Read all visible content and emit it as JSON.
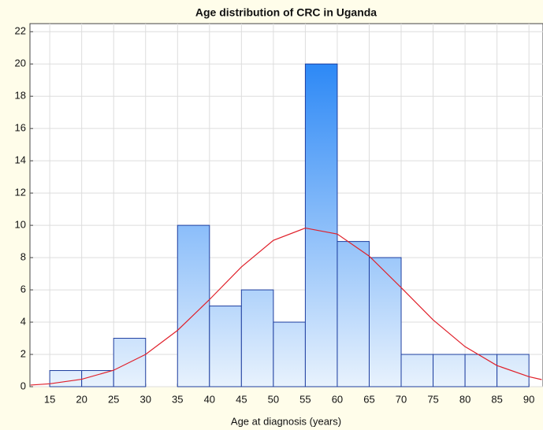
{
  "chart_data": {
    "type": "histogram",
    "title": "Age distribution of CRC in Uganda",
    "x_label": "Age at diagnosis (years)",
    "bins": [
      15,
      20,
      25,
      30,
      35,
      40,
      45,
      50,
      55,
      60,
      65,
      70,
      75,
      80,
      85,
      90
    ],
    "values": [
      1,
      1,
      3,
      0,
      10,
      5,
      6,
      4,
      20,
      9,
      8,
      2,
      2,
      2,
      2
    ],
    "gradient": [
      "#1a7ef5",
      "#e8f2fd"
    ],
    "edge_color": "#1f3fa0",
    "xlim": [
      11.9,
      92.2
    ],
    "xticks": [
      15,
      20,
      25,
      30,
      35,
      40,
      45,
      50,
      55,
      60,
      65,
      70,
      75,
      80,
      85,
      90
    ],
    "ylim": [
      0,
      22.5
    ],
    "yticks": [
      0,
      2,
      4,
      6,
      8,
      10,
      12,
      14,
      16,
      18,
      20,
      22
    ],
    "grid": true,
    "curve": {
      "color": "#e0202a",
      "x": [
        12,
        15,
        20,
        25,
        30,
        35,
        40,
        45,
        50,
        55,
        60,
        65,
        70,
        75,
        80,
        85,
        90,
        92
      ],
      "values": [
        0.1,
        0.18,
        0.46,
        1.02,
        2.0,
        3.49,
        5.4,
        7.42,
        9.07,
        9.83,
        9.46,
        8.09,
        6.14,
        4.14,
        2.48,
        1.31,
        0.62,
        0.44
      ]
    }
  }
}
